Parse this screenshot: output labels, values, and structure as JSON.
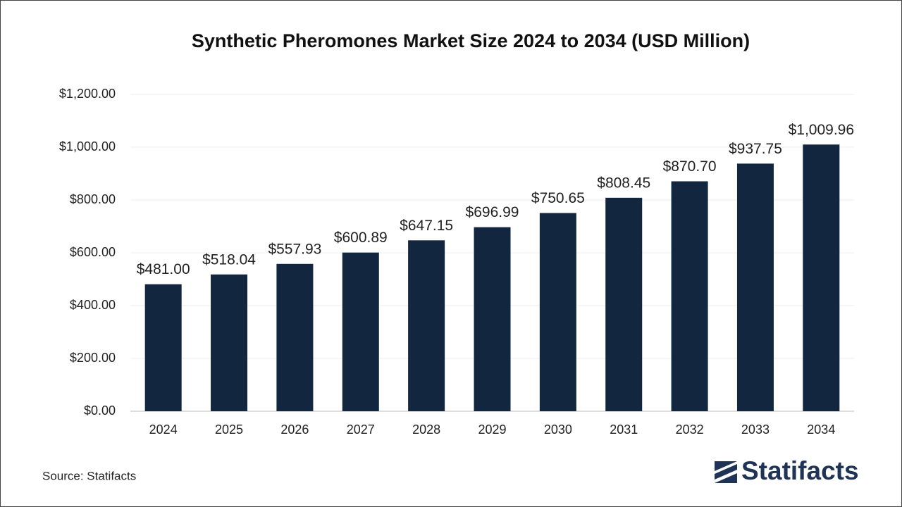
{
  "chart_data": {
    "type": "bar",
    "title": "Synthetic Pheromones Market Size 2024 to 2034 (USD Million)",
    "categories": [
      "2024",
      "2025",
      "2026",
      "2027",
      "2028",
      "2029",
      "2030",
      "2031",
      "2032",
      "2033",
      "2034"
    ],
    "values": [
      481.0,
      518.04,
      557.93,
      600.89,
      647.15,
      696.99,
      750.65,
      808.45,
      870.7,
      937.75,
      1009.96
    ],
    "value_labels": [
      "$481.00",
      "$518.04",
      "$557.93",
      "$600.89",
      "$647.15",
      "$696.99",
      "$750.65",
      "$808.45",
      "$870.70",
      "$937.75",
      "$1,009.96"
    ],
    "color": "#13263f",
    "ylim": [
      0,
      1200
    ],
    "yticks": [
      {
        "value": 0,
        "label": "$0.00"
      },
      {
        "value": 200,
        "label": "$200.00"
      },
      {
        "value": 400,
        "label": "$400.00"
      },
      {
        "value": 600,
        "label": "$600.00"
      },
      {
        "value": 800,
        "label": "$800.00"
      },
      {
        "value": 1000,
        "label": "$1,000.00"
      },
      {
        "value": 1200,
        "label": "$1,200.00"
      }
    ],
    "grid": true
  },
  "source": "Source: Statifacts",
  "brand": "Statifacts"
}
